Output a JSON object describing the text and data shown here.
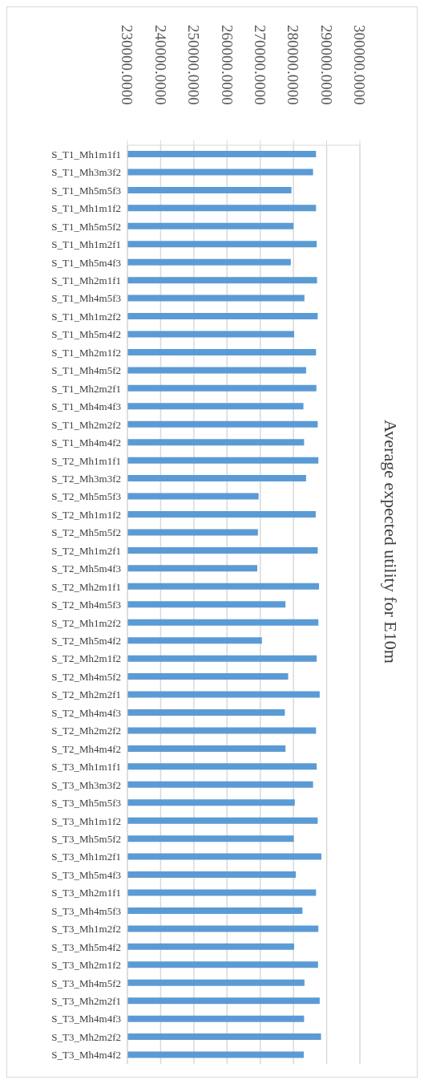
{
  "chart_data": {
    "type": "bar",
    "orientation": "horizontal",
    "title": "Average expected utility for E10m",
    "categories": [
      "S_T1_Mh1m1f1",
      "S_T1_Mh3m3f2",
      "S_T1_Mh5m5f3",
      "S_T1_Mh1m1f2",
      "S_T1_Mh5m5f2",
      "S_T1_Mh1m2f1",
      "S_T1_Mh5m4f3",
      "S_T1_Mh2m1f1",
      "S_T1_Mh4m5f3",
      "S_T1_Mh1m2f2",
      "S_T1_Mh5m4f2",
      "S_T1_Mh2m1f2",
      "S_T1_Mh4m5f2",
      "S_T1_Mh2m2f1",
      "S_T1_Mh4m4f3",
      "S_T1_Mh2m2f2",
      "S_T1_Mh4m4f2",
      "S_T2_Mh1m1f1",
      "S_T2_Mh3m3f2",
      "S_T2_Mh5m5f3",
      "S_T2_Mh1m1f2",
      "S_T2_Mh5m5f2",
      "S_T2_Mh1m2f1",
      "S_T2_Mh5m4f3",
      "S_T2_Mh2m1f1",
      "S_T2_Mh4m5f3",
      "S_T2_Mh1m2f2",
      "S_T2_Mh5m4f2",
      "S_T2_Mh2m1f2",
      "S_T2_Mh4m5f2",
      "S_T2_Mh2m2f1",
      "S_T2_Mh4m4f3",
      "S_T2_Mh2m2f2",
      "S_T2_Mh4m4f2",
      "S_T3_Mh1m1f1",
      "S_T3_Mh3m3f2",
      "S_T3_Mh5m5f3",
      "S_T3_Mh1m1f2",
      "S_T3_Mh5m5f2",
      "S_T3_Mh1m2f1",
      "S_T3_Mh5m4f3",
      "S_T3_Mh2m1f1",
      "S_T3_Mh4m5f3",
      "S_T3_Mh1m2f2",
      "S_T3_Mh5m4f2",
      "S_T3_Mh2m1f2",
      "S_T3_Mh4m5f2",
      "S_T3_Mh2m2f1",
      "S_T3_Mh4m4f3",
      "S_T3_Mh2m2f2",
      "S_T3_Mh4m4f2"
    ],
    "values": [
      286800,
      285900,
      279400,
      286800,
      280000,
      287000,
      279200,
      287100,
      283300,
      287300,
      280200,
      286800,
      283800,
      286900,
      283000,
      287300,
      283200,
      287500,
      283800,
      269500,
      286700,
      269300,
      287300,
      269100,
      287700,
      277600,
      287500,
      270500,
      287000,
      278400,
      287900,
      277400,
      286800,
      277600,
      287000,
      285900,
      280400,
      287300,
      280100,
      288400,
      280700,
      286800,
      282700,
      287500,
      280200,
      287400,
      283300,
      287900,
      283200,
      288300,
      283100
    ],
    "color": "#5b9bd5",
    "xlim": [
      230000,
      300000
    ],
    "xticks": [
      {
        "value": 230000,
        "label": "230000.0000"
      },
      {
        "value": 240000,
        "label": "240000.0000"
      },
      {
        "value": 250000,
        "label": "250000.0000"
      },
      {
        "value": 260000,
        "label": "260000.0000"
      },
      {
        "value": 270000,
        "label": "270000.0000"
      },
      {
        "value": 280000,
        "label": "280000.0000"
      },
      {
        "value": 290000,
        "label": "290000.0000"
      },
      {
        "value": 300000,
        "label": "300000.0000"
      }
    ],
    "grid": "x",
    "legend": false
  }
}
